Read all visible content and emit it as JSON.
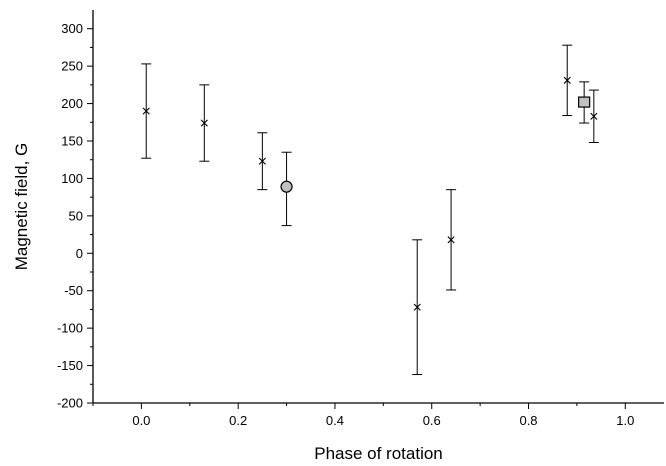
{
  "chart_data": {
    "type": "scatter",
    "title": "",
    "xlabel": "Phase of rotation",
    "ylabel": "Magnetic field, G",
    "xlim": [
      -0.1,
      1.08
    ],
    "ylim": [
      -200,
      325
    ],
    "x_ticks": [
      0.0,
      0.2,
      0.4,
      0.6,
      0.8,
      1.0
    ],
    "x_tick_labels": [
      "0.0",
      "0.2",
      "0.4",
      "0.6",
      "0.8",
      "1.0"
    ],
    "y_ticks": [
      -200,
      -150,
      -100,
      -50,
      0,
      50,
      100,
      150,
      200,
      250,
      300
    ],
    "y_tick_labels": [
      "-200",
      "-150",
      "-100",
      "-50",
      "0",
      "50",
      "100",
      "150",
      "200",
      "250",
      "300"
    ],
    "grid": false,
    "legend": "none",
    "series": [
      {
        "marker": "cross",
        "color": "#000000",
        "points": [
          {
            "x": 0.01,
            "y": 190,
            "err_low": 127,
            "err_high": 253
          },
          {
            "x": 0.13,
            "y": 174,
            "err_low": 123,
            "err_high": 225
          },
          {
            "x": 0.25,
            "y": 123,
            "err_low": 85,
            "err_high": 161
          },
          {
            "x": 0.57,
            "y": -72,
            "err_low": -162,
            "err_high": 18
          },
          {
            "x": 0.64,
            "y": 18,
            "err_low": -49,
            "err_high": 85
          },
          {
            "x": 0.88,
            "y": 231,
            "err_low": 184,
            "err_high": 278
          },
          {
            "x": 0.935,
            "y": 183,
            "err_low": 148,
            "err_high": 218
          }
        ]
      },
      {
        "marker": "circle",
        "color": "#c0c0c0",
        "points": [
          {
            "x": 0.3,
            "y": 89,
            "err_low": 37,
            "err_high": 135
          }
        ]
      },
      {
        "marker": "square",
        "color": "#c0c0c0",
        "points": [
          {
            "x": 0.915,
            "y": 202,
            "err_low": 174,
            "err_high": 229
          }
        ]
      }
    ]
  }
}
